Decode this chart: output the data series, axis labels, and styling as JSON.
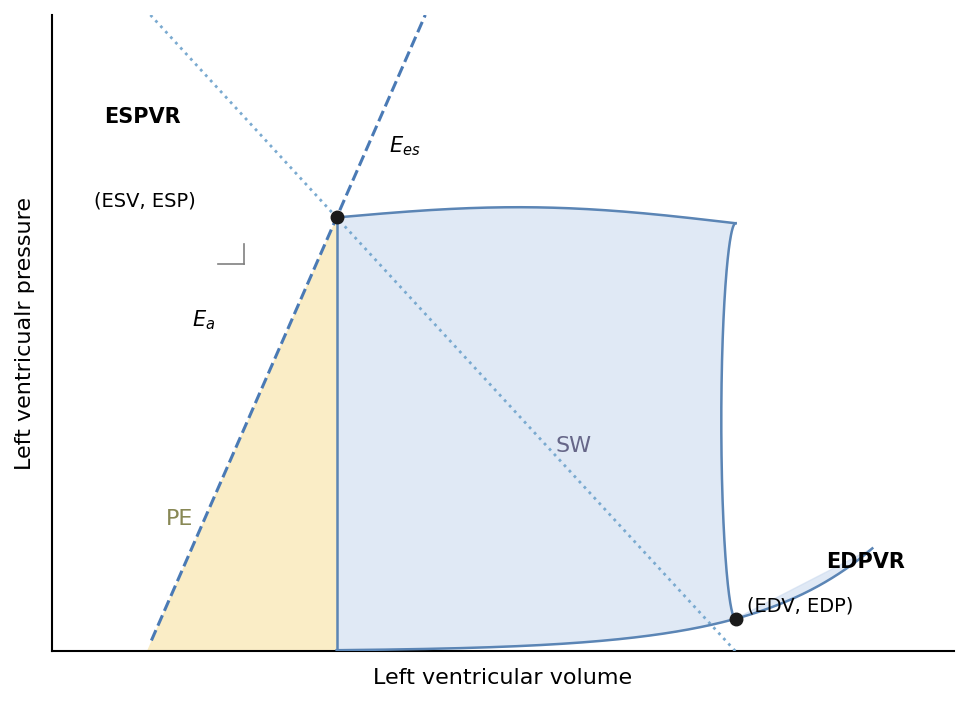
{
  "xlabel": "Left ventricular volume",
  "ylabel": "Left ventricualr pressure",
  "ESV": 0.3,
  "ESP": 0.6,
  "EDV": 0.72,
  "EDP": 0.045,
  "espvr_label": "ESPVR",
  "edpvr_label": "EDPVR",
  "Ees_label": "$E_{es}$",
  "Ea_label": "$E_a$",
  "SW_label": "SW",
  "PE_label": "PE",
  "ESV_ESP_label": "(ESV, ESP)",
  "EDV_EDP_label": "(EDV, EDP)",
  "line_color": "#5b85b5",
  "dashed_color": "#4a7ab5",
  "dotted_color": "#7aaad0",
  "fill_SW_color": "#c8d8ee",
  "fill_PE_color": "#faecc0",
  "fill_SW_alpha": 0.55,
  "fill_PE_alpha": 0.9,
  "xlim": [
    0,
    0.95
  ],
  "ylim": [
    0,
    0.88
  ]
}
